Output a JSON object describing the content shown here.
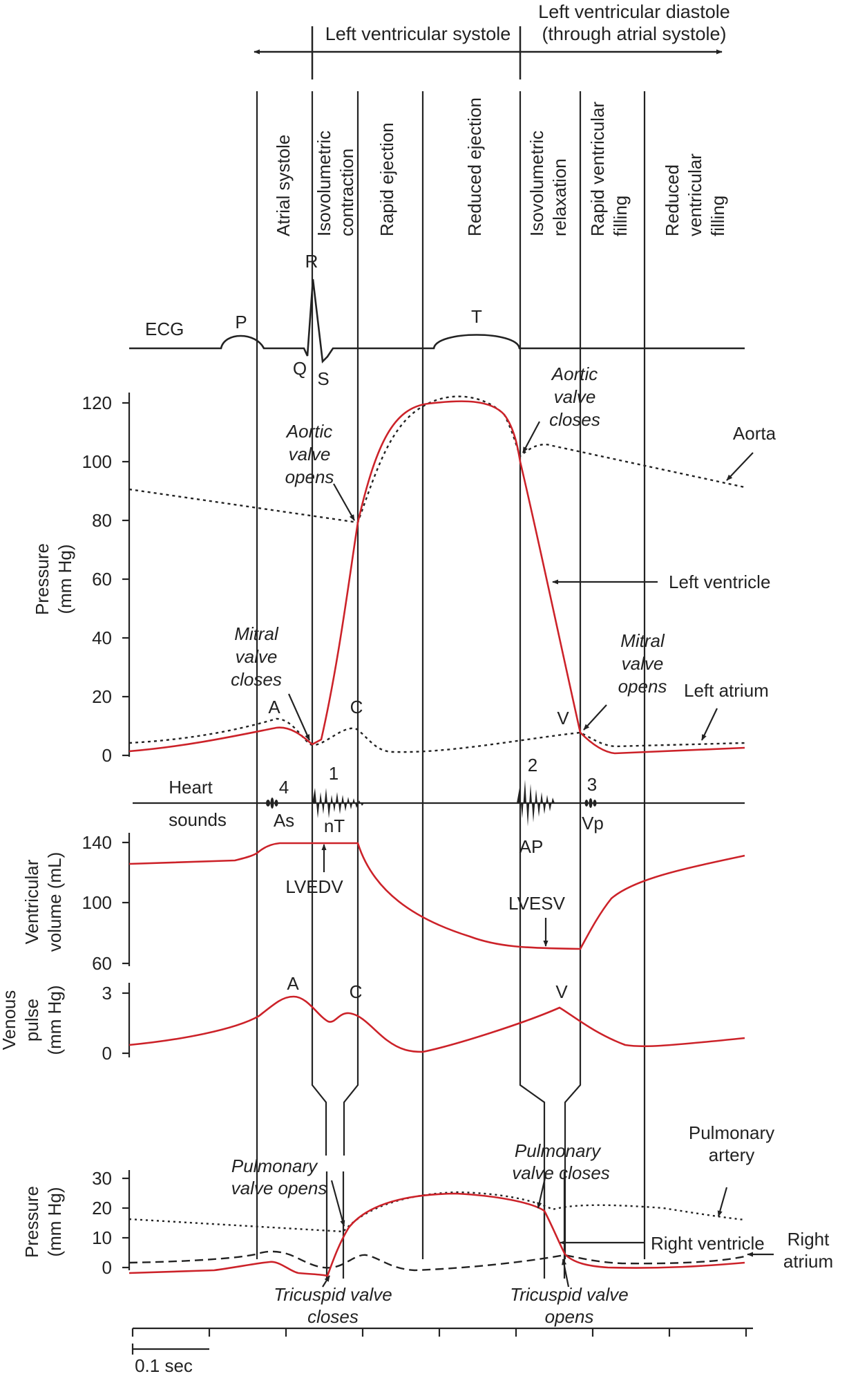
{
  "colors": {
    "ink": "#222222",
    "red": "#cc2229"
  },
  "header": {
    "systole": "Left ventricular systole",
    "diastole_line1": "Left ventricular diastole",
    "diastole_line2": "(through atrial systole)"
  },
  "phases": [
    {
      "lines": [
        "Atrial systole"
      ]
    },
    {
      "lines": [
        "Isovolumetric",
        "contraction"
      ]
    },
    {
      "lines": [
        "Rapid ejection"
      ]
    },
    {
      "lines": [
        "Reduced ejection"
      ]
    },
    {
      "lines": [
        "Isovolumetric",
        "relaxation"
      ]
    },
    {
      "lines": [
        "Rapid ventricular",
        "filling"
      ]
    },
    {
      "lines": [
        "Reduced",
        "ventricular",
        "filling"
      ]
    }
  ],
  "ecg": {
    "label": "ECG",
    "P": "P",
    "Q": "Q",
    "R": "R",
    "S": "S",
    "T": "T"
  },
  "left_pressure": {
    "axis_line1": "Pressure",
    "axis_line2": "(mm Hg)",
    "ticks": [
      "0",
      "20",
      "40",
      "60",
      "80",
      "100",
      "120"
    ],
    "aorta": "Aorta",
    "left_ventricle": "Left ventricle",
    "left_atrium": "Left atrium",
    "aortic_opens": [
      "Aortic",
      "valve",
      "opens"
    ],
    "aortic_closes": [
      "Aortic",
      "valve",
      "closes"
    ],
    "mitral_closes": [
      "Mitral",
      "valve",
      "closes"
    ],
    "mitral_opens": [
      "Mitral",
      "valve",
      "opens"
    ],
    "wave_A": "A",
    "wave_C": "C",
    "wave_V": "V"
  },
  "heart_sounds": {
    "line1": "Heart",
    "line2": "sounds",
    "s4": "4",
    "s4_sub": "As",
    "s1": "1",
    "s1_sub": "nT",
    "s2": "2",
    "s2_sub": "AP",
    "s3": "3",
    "s3_sub": "Vp"
  },
  "volume": {
    "axis_line1": "Ventricular",
    "axis_line2": "volume (mL)",
    "ticks": [
      "60",
      "100",
      "140"
    ],
    "lvedv": "LVEDV",
    "lvesv": "LVESV"
  },
  "venous": {
    "axis_line1": "Venous",
    "axis_line2": "pulse",
    "axis_line3": "(mm Hg)",
    "ticks": [
      "0",
      "3"
    ],
    "A": "A",
    "C": "C",
    "V": "V"
  },
  "right_pressure": {
    "axis_line1": "Pressure",
    "axis_line2": "(mm Hg)",
    "ticks": [
      "0",
      "10",
      "20",
      "30"
    ],
    "pulmonary_artery": [
      "Pulmonary",
      "artery"
    ],
    "right_ventricle": "Right ventricle",
    "right_atrium": [
      "Right",
      "atrium"
    ],
    "pulm_opens": [
      "Pulmonary",
      "valve opens"
    ],
    "pulm_closes": [
      "Pulmonary",
      "valve closes"
    ],
    "tricuspid_closes": [
      "Tricuspid valve",
      "closes"
    ],
    "tricuspid_opens": [
      "Tricuspid valve",
      "opens"
    ]
  },
  "time": {
    "scale": "0.1 sec"
  }
}
